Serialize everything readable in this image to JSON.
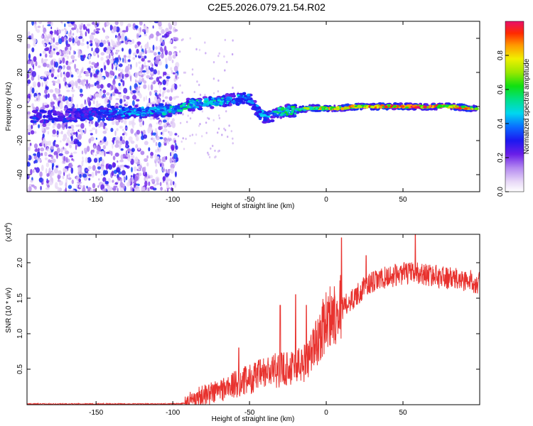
{
  "title": "C2E5.2026.079.21.54.R02",
  "chart_data": [
    {
      "type": "heatmap",
      "name": "spectrogram",
      "xlabel": "Height of straight line (km)",
      "ylabel": "Frequency (Hz)",
      "xlim": [
        -195,
        100
      ],
      "ylim": [
        -50,
        50
      ],
      "xticks": [
        -150,
        -100,
        -50,
        0,
        50
      ],
      "yticks": [
        -40,
        -20,
        0,
        20,
        40
      ],
      "colorbar": {
        "label": "Normalized spectral amplitude",
        "range": [
          0,
          1
        ],
        "ticks": [
          0.0,
          0.2,
          0.4,
          0.6,
          0.8
        ],
        "tick_labels": [
          "0.0",
          "0.2",
          "0.4",
          "0.6",
          "0.8"
        ]
      },
      "ridge": {
        "x": [
          -190,
          -160,
          -140,
          -120,
          -100,
          -90,
          -80,
          -70,
          -60,
          -50,
          -45,
          -40,
          -35,
          -30,
          -20,
          -10,
          0,
          10,
          20,
          40,
          60,
          80,
          95
        ],
        "y": [
          -6,
          -5,
          -4,
          -3,
          -2,
          1,
          2,
          3,
          4,
          5,
          -2,
          -6,
          -5,
          -3,
          -2,
          -1,
          -1,
          -1,
          0,
          0,
          0,
          0,
          -1
        ],
        "amplitude": [
          0.2,
          0.3,
          0.4,
          0.45,
          0.5,
          0.55,
          0.5,
          0.5,
          0.45,
          0.4,
          0.4,
          0.45,
          0.5,
          0.55,
          0.6,
          0.7,
          0.85,
          0.8,
          0.85,
          0.9,
          0.95,
          0.9,
          0.85
        ]
      }
    },
    {
      "type": "line",
      "name": "snr",
      "xlabel": "Height of straight line (km)",
      "ylabel": "SNR (10 * v/v)",
      "multiplier": "(x10",
      "multiplier_exp": "4",
      "multiplier_close": ")",
      "color": "#e8322e",
      "xlim": [
        -195,
        100
      ],
      "ylim": [
        0,
        2.4
      ],
      "xticks": [
        -150,
        -100,
        -50,
        0,
        50
      ],
      "yticks": [
        0.5,
        1.0,
        1.5,
        2.0
      ],
      "ytick_labels": [
        "0.5",
        "1.0",
        "1.5",
        "2.0"
      ],
      "trend": {
        "x": [
          -195,
          -150,
          -100,
          -92,
          -85,
          -75,
          -65,
          -55,
          -45,
          -35,
          -25,
          -15,
          -10,
          -5,
          0,
          5,
          10,
          15,
          20,
          25,
          30,
          40,
          50,
          60,
          70,
          80,
          90,
          100
        ],
        "y": [
          0.01,
          0.01,
          0.01,
          0.02,
          0.08,
          0.15,
          0.22,
          0.3,
          0.38,
          0.45,
          0.5,
          0.55,
          0.7,
          0.9,
          1.15,
          1.25,
          1.35,
          1.45,
          1.55,
          1.65,
          1.72,
          1.8,
          1.85,
          1.85,
          1.82,
          1.78,
          1.75,
          1.72
        ]
      },
      "spikes": [
        {
          "x": -57,
          "y": 0.8
        },
        {
          "x": -30,
          "y": 1.4
        },
        {
          "x": -20,
          "y": 1.55
        },
        {
          "x": -13,
          "y": 1.4
        },
        {
          "x": 10,
          "y": 2.35
        },
        {
          "x": 26,
          "y": 2.1
        },
        {
          "x": 58,
          "y": 2.4
        }
      ]
    }
  ]
}
